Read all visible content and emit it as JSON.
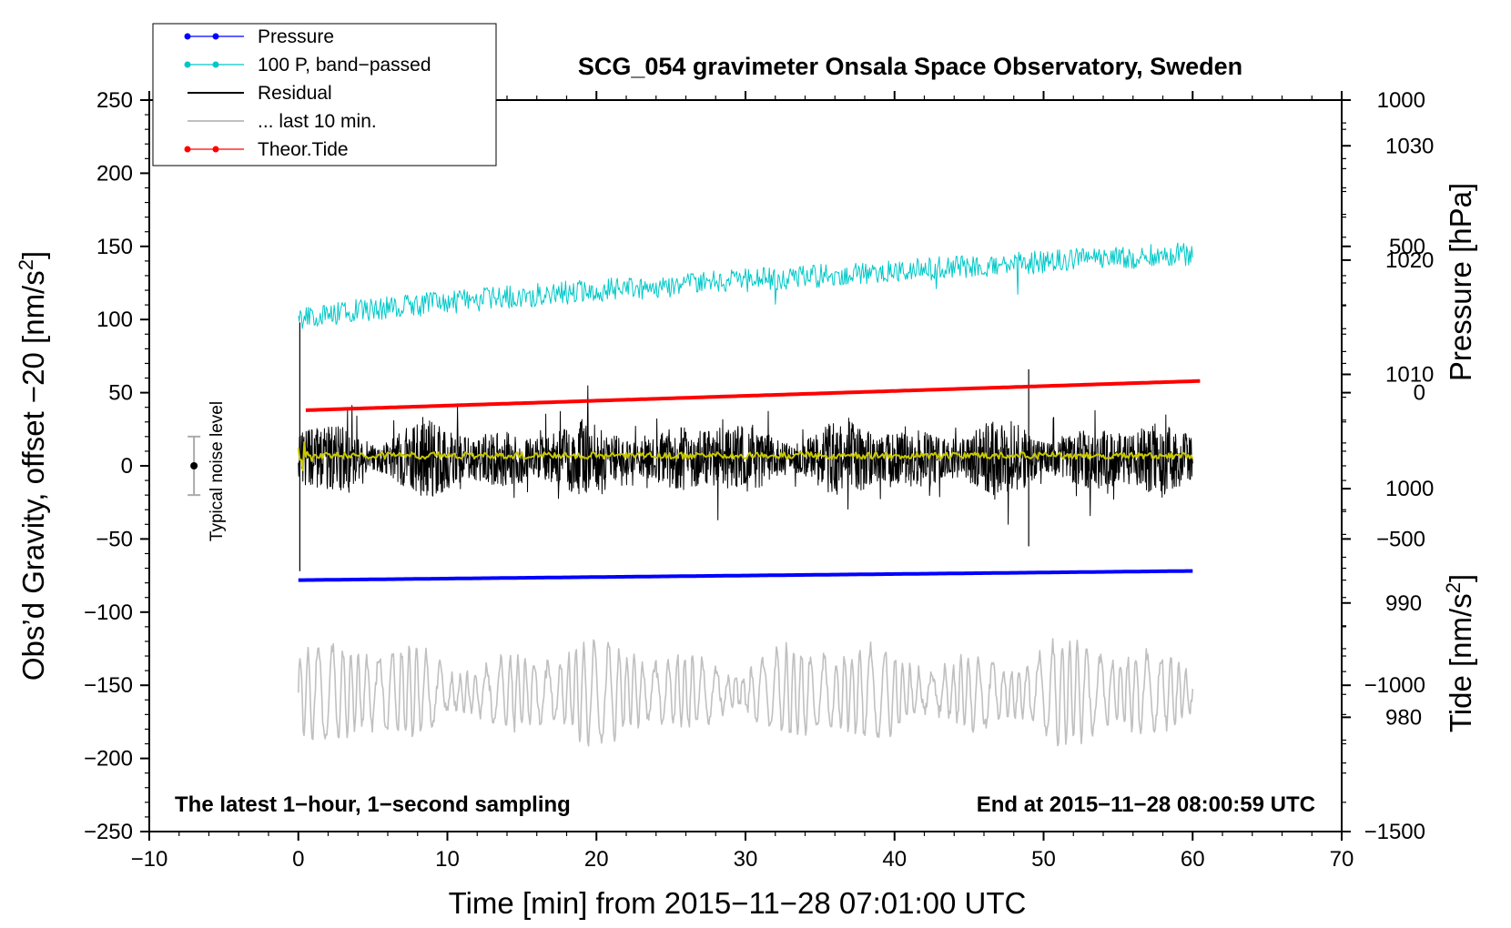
{
  "chart_data": {
    "type": "line",
    "title": "SCG_054 gravimeter Onsala Space Observatory, Sweden",
    "xlabel": "Time [min] from 2015−11−28 07:01:00 UTC",
    "ylabel_left": "Obs’d Gravity, offset −20 [nm/s²]",
    "ylabel_right_top": "Pressure [hPa]",
    "ylabel_right_bottom": "Tide [nm/s²]",
    "xlim": [
      -10,
      70
    ],
    "ylim_left": [
      -250,
      250
    ],
    "ylim_pressure": [
      970,
      1034
    ],
    "ylim_tide": [
      -1500,
      1000
    ],
    "x_ticks": [
      -10,
      0,
      10,
      20,
      30,
      40,
      50,
      60,
      70
    ],
    "x_tick_labels": [
      "−10",
      "0",
      "10",
      "20",
      "30",
      "40",
      "50",
      "60",
      "70"
    ],
    "y_left_ticks": [
      250,
      200,
      150,
      100,
      50,
      0,
      -50,
      -100,
      -150,
      -200,
      -250
    ],
    "y_left_tick_labels": [
      "250",
      "200",
      "150",
      "100",
      "50",
      "0",
      "−50",
      "−100",
      "−150",
      "−200",
      "−250"
    ],
    "y_pressure_ticks": [
      980,
      990,
      1000,
      1010,
      1020,
      1030
    ],
    "y_pressure_tick_labels": [
      "980",
      "990",
      "1000",
      "1010",
      "1020",
      "1030"
    ],
    "y_tide_ticks": [
      1000,
      500,
      0,
      -500,
      -1000,
      -1500
    ],
    "y_tide_tick_labels": [
      "1000",
      "500",
      "0",
      "−500",
      "−1000",
      "−1500"
    ],
    "annotations": {
      "left_note": "The latest 1−hour, 1−second sampling",
      "right_note": "End at 2015−11−28 08:00:59 UTC",
      "noise_label": "Typical noise level",
      "noise_bar": {
        "x": -7,
        "center": 0,
        "half_range": 20
      }
    },
    "legend": {
      "position": "top-left",
      "entries": [
        {
          "label": "Pressure",
          "color": "#0000ff",
          "marker": "dot"
        },
        {
          "label": "100 P, band−passed",
          "color": "#00c8c8",
          "marker": "dot"
        },
        {
          "label": "Residual",
          "color": "#000000",
          "marker": "none"
        },
        {
          "label": "... last 10 min.",
          "color": "#c0c0c0",
          "marker": "none"
        },
        {
          "label": "Theor.Tide",
          "color": "#ff0000",
          "marker": "dot"
        }
      ]
    },
    "series": [
      {
        "name": "Pressure",
        "axis": "pressure",
        "color": "#0000ff",
        "x_range": [
          0,
          60
        ],
        "start": 992,
        "end": 992.8
      },
      {
        "name": "100 P, band−passed",
        "axis": "left",
        "color": "#00c8c8",
        "x_range": [
          0,
          60
        ],
        "start": 100,
        "end": 145,
        "noise_amplitude": 8
      },
      {
        "name": "Residual",
        "axis": "left",
        "color": "#000000",
        "x_range": [
          0,
          60
        ],
        "mean": 5,
        "noise_amplitude": 25,
        "spikes": [
          {
            "x": 0.1,
            "y": -72
          },
          {
            "x": 0.1,
            "y": 98
          },
          {
            "x": 49,
            "y": -55
          },
          {
            "x": 49,
            "y": 66
          }
        ]
      },
      {
        "name": "Smoothed residual",
        "axis": "left",
        "color": "#c8c800",
        "x_range": [
          0,
          60
        ],
        "mean": 7
      },
      {
        "name": "... last 10 min.",
        "axis": "left",
        "color": "#c0c0c0",
        "x_range": [
          0,
          60
        ],
        "mean": -155,
        "amplitude_range": [
          10,
          35
        ]
      },
      {
        "name": "Theor.Tide",
        "axis": "tide",
        "color": "#ff0000",
        "x_range": [
          0.5,
          60.5
        ],
        "start": -60,
        "end": 40
      }
    ]
  }
}
